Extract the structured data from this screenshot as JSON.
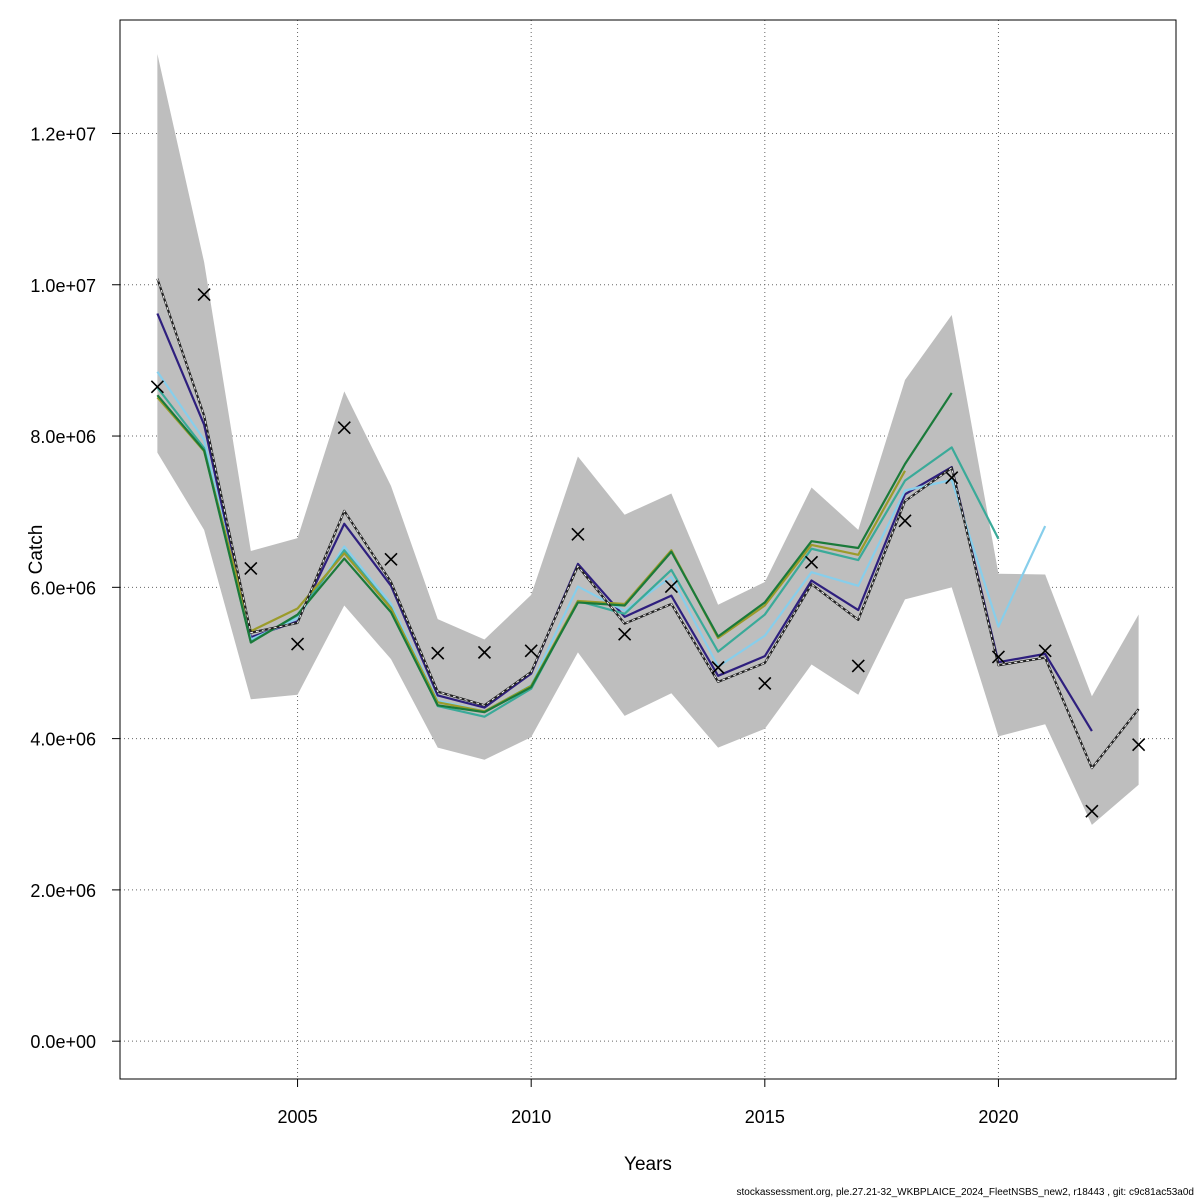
{
  "chart_data": {
    "type": "line",
    "xlabel": "Years",
    "ylabel": "Catch",
    "xlim": [
      2001.2,
      2023.8
    ],
    "ylim": [
      -500000,
      13500000
    ],
    "x_ticks": [
      2005,
      2010,
      2015,
      2020
    ],
    "x_tick_labels": [
      "2005",
      "2010",
      "2015",
      "2020"
    ],
    "y_ticks": [
      0,
      2000000,
      4000000,
      6000000,
      8000000,
      10000000,
      12000000
    ],
    "y_tick_labels": [
      "0.0e+00",
      "2.0e+06",
      "4.0e+06",
      "6.0e+06",
      "8.0e+06",
      "1.0e+07",
      "1.2e+07"
    ],
    "grid": true,
    "colors": {
      "band": "#bebebe",
      "base": "#222222",
      "observed": "#000000",
      "grid": "#666666"
    },
    "confidence_band": {
      "x": [
        2002,
        2003,
        2004,
        2005,
        2006,
        2007,
        2008,
        2009,
        2010,
        2011,
        2012,
        2013,
        2014,
        2015,
        2016,
        2017,
        2018,
        2019,
        2020,
        2021,
        2022,
        2023
      ],
      "lower": [
        7780000,
        6760000,
        4520000,
        4580000,
        5760000,
        5050000,
        3880000,
        3720000,
        4020000,
        5140000,
        4300000,
        4600000,
        3880000,
        4130000,
        4980000,
        4580000,
        5840000,
        6000000,
        4030000,
        4190000,
        2860000,
        3390000
      ],
      "upper": [
        13050000,
        10300000,
        6480000,
        6650000,
        8590000,
        7340000,
        5580000,
        5310000,
        5900000,
        7730000,
        6960000,
        7240000,
        5770000,
        6070000,
        7320000,
        6760000,
        8740000,
        9600000,
        6180000,
        6170000,
        4560000,
        5640000
      ]
    },
    "base_estimate": {
      "x": [
        2002,
        2003,
        2004,
        2005,
        2006,
        2007,
        2008,
        2009,
        2010,
        2011,
        2012,
        2013,
        2014,
        2015,
        2016,
        2017,
        2018,
        2019,
        2020,
        2021,
        2022,
        2023
      ],
      "values": [
        10080000,
        8270000,
        5400000,
        5530000,
        7010000,
        6070000,
        4620000,
        4440000,
        4880000,
        6280000,
        5520000,
        5780000,
        4750000,
        5000000,
        6040000,
        5570000,
        7140000,
        7580000,
        4970000,
        5070000,
        3610000,
        4390000
      ]
    },
    "observed": {
      "x": [
        2002,
        2003,
        2004,
        2005,
        2006,
        2007,
        2008,
        2009,
        2010,
        2011,
        2012,
        2013,
        2014,
        2015,
        2016,
        2017,
        2018,
        2019,
        2020,
        2021,
        2022,
        2023
      ],
      "values": [
        8650000,
        9870000,
        6250000,
        5250000,
        8110000,
        6370000,
        5130000,
        5140000,
        5160000,
        6700000,
        5380000,
        6010000,
        4940000,
        4730000,
        6330000,
        4960000,
        6880000,
        7450000,
        5080000,
        5160000,
        3040000,
        3920000
      ]
    },
    "series": [
      {
        "color": "#2e1f7e",
        "x": [
          2002,
          2003,
          2004,
          2005,
          2006,
          2007,
          2008,
          2009,
          2010,
          2011,
          2012,
          2013,
          2014,
          2015,
          2016,
          2017,
          2018,
          2019,
          2020,
          2021,
          2022
        ],
        "values": [
          9620000,
          8150000,
          5340000,
          5550000,
          6840000,
          6020000,
          4570000,
          4410000,
          4860000,
          6310000,
          5610000,
          5890000,
          4830000,
          5090000,
          6090000,
          5700000,
          7230000,
          7590000,
          5010000,
          5120000,
          4100000
        ]
      },
      {
        "color": "#87ceeb",
        "x": [
          2002,
          2003,
          2004,
          2005,
          2006,
          2007,
          2008,
          2009,
          2010,
          2011,
          2012,
          2013,
          2014,
          2015,
          2016,
          2017,
          2018,
          2019,
          2020,
          2021
        ],
        "values": [
          8850000,
          7950000,
          5310000,
          5590000,
          6540000,
          5780000,
          4500000,
          4360000,
          4710000,
          6010000,
          5690000,
          6140000,
          4950000,
          5360000,
          6200000,
          6020000,
          7280000,
          7420000,
          5480000,
          6810000
        ]
      },
      {
        "color": "#3aaa99",
        "x": [
          2002,
          2003,
          2004,
          2005,
          2006,
          2007,
          2008,
          2009,
          2010,
          2011,
          2012,
          2013,
          2014,
          2015,
          2016,
          2017,
          2018,
          2019,
          2020
        ],
        "values": [
          8640000,
          7840000,
          5280000,
          5630000,
          6490000,
          5730000,
          4430000,
          4290000,
          4660000,
          5820000,
          5650000,
          6230000,
          5150000,
          5640000,
          6510000,
          6360000,
          7410000,
          7850000,
          6640000
        ]
      },
      {
        "color": "#9b9b2a",
        "x": [
          2002,
          2003,
          2004,
          2005,
          2006,
          2007,
          2008,
          2009,
          2010,
          2011,
          2012,
          2013,
          2014,
          2015,
          2016,
          2017,
          2018
        ],
        "values": [
          8510000,
          7800000,
          5420000,
          5720000,
          6450000,
          5720000,
          4480000,
          4360000,
          4700000,
          5820000,
          5780000,
          6490000,
          5330000,
          5760000,
          6560000,
          6430000,
          7540000
        ]
      },
      {
        "color": "#1a7a3a",
        "x": [
          2002,
          2003,
          2004,
          2005,
          2006,
          2007,
          2008,
          2009,
          2010,
          2011,
          2012,
          2013,
          2014,
          2015,
          2016,
          2017,
          2018,
          2019
        ],
        "values": [
          8540000,
          7810000,
          5270000,
          5640000,
          6380000,
          5670000,
          4440000,
          4350000,
          4680000,
          5800000,
          5760000,
          6470000,
          5350000,
          5800000,
          6610000,
          6520000,
          7630000,
          8570000
        ]
      }
    ]
  },
  "footer": "stockassessment.org, ple.27.21-32_WKBPLAICE_2024_FleetNSBS_new2, r18443 , git: c9c81ac53a0d"
}
